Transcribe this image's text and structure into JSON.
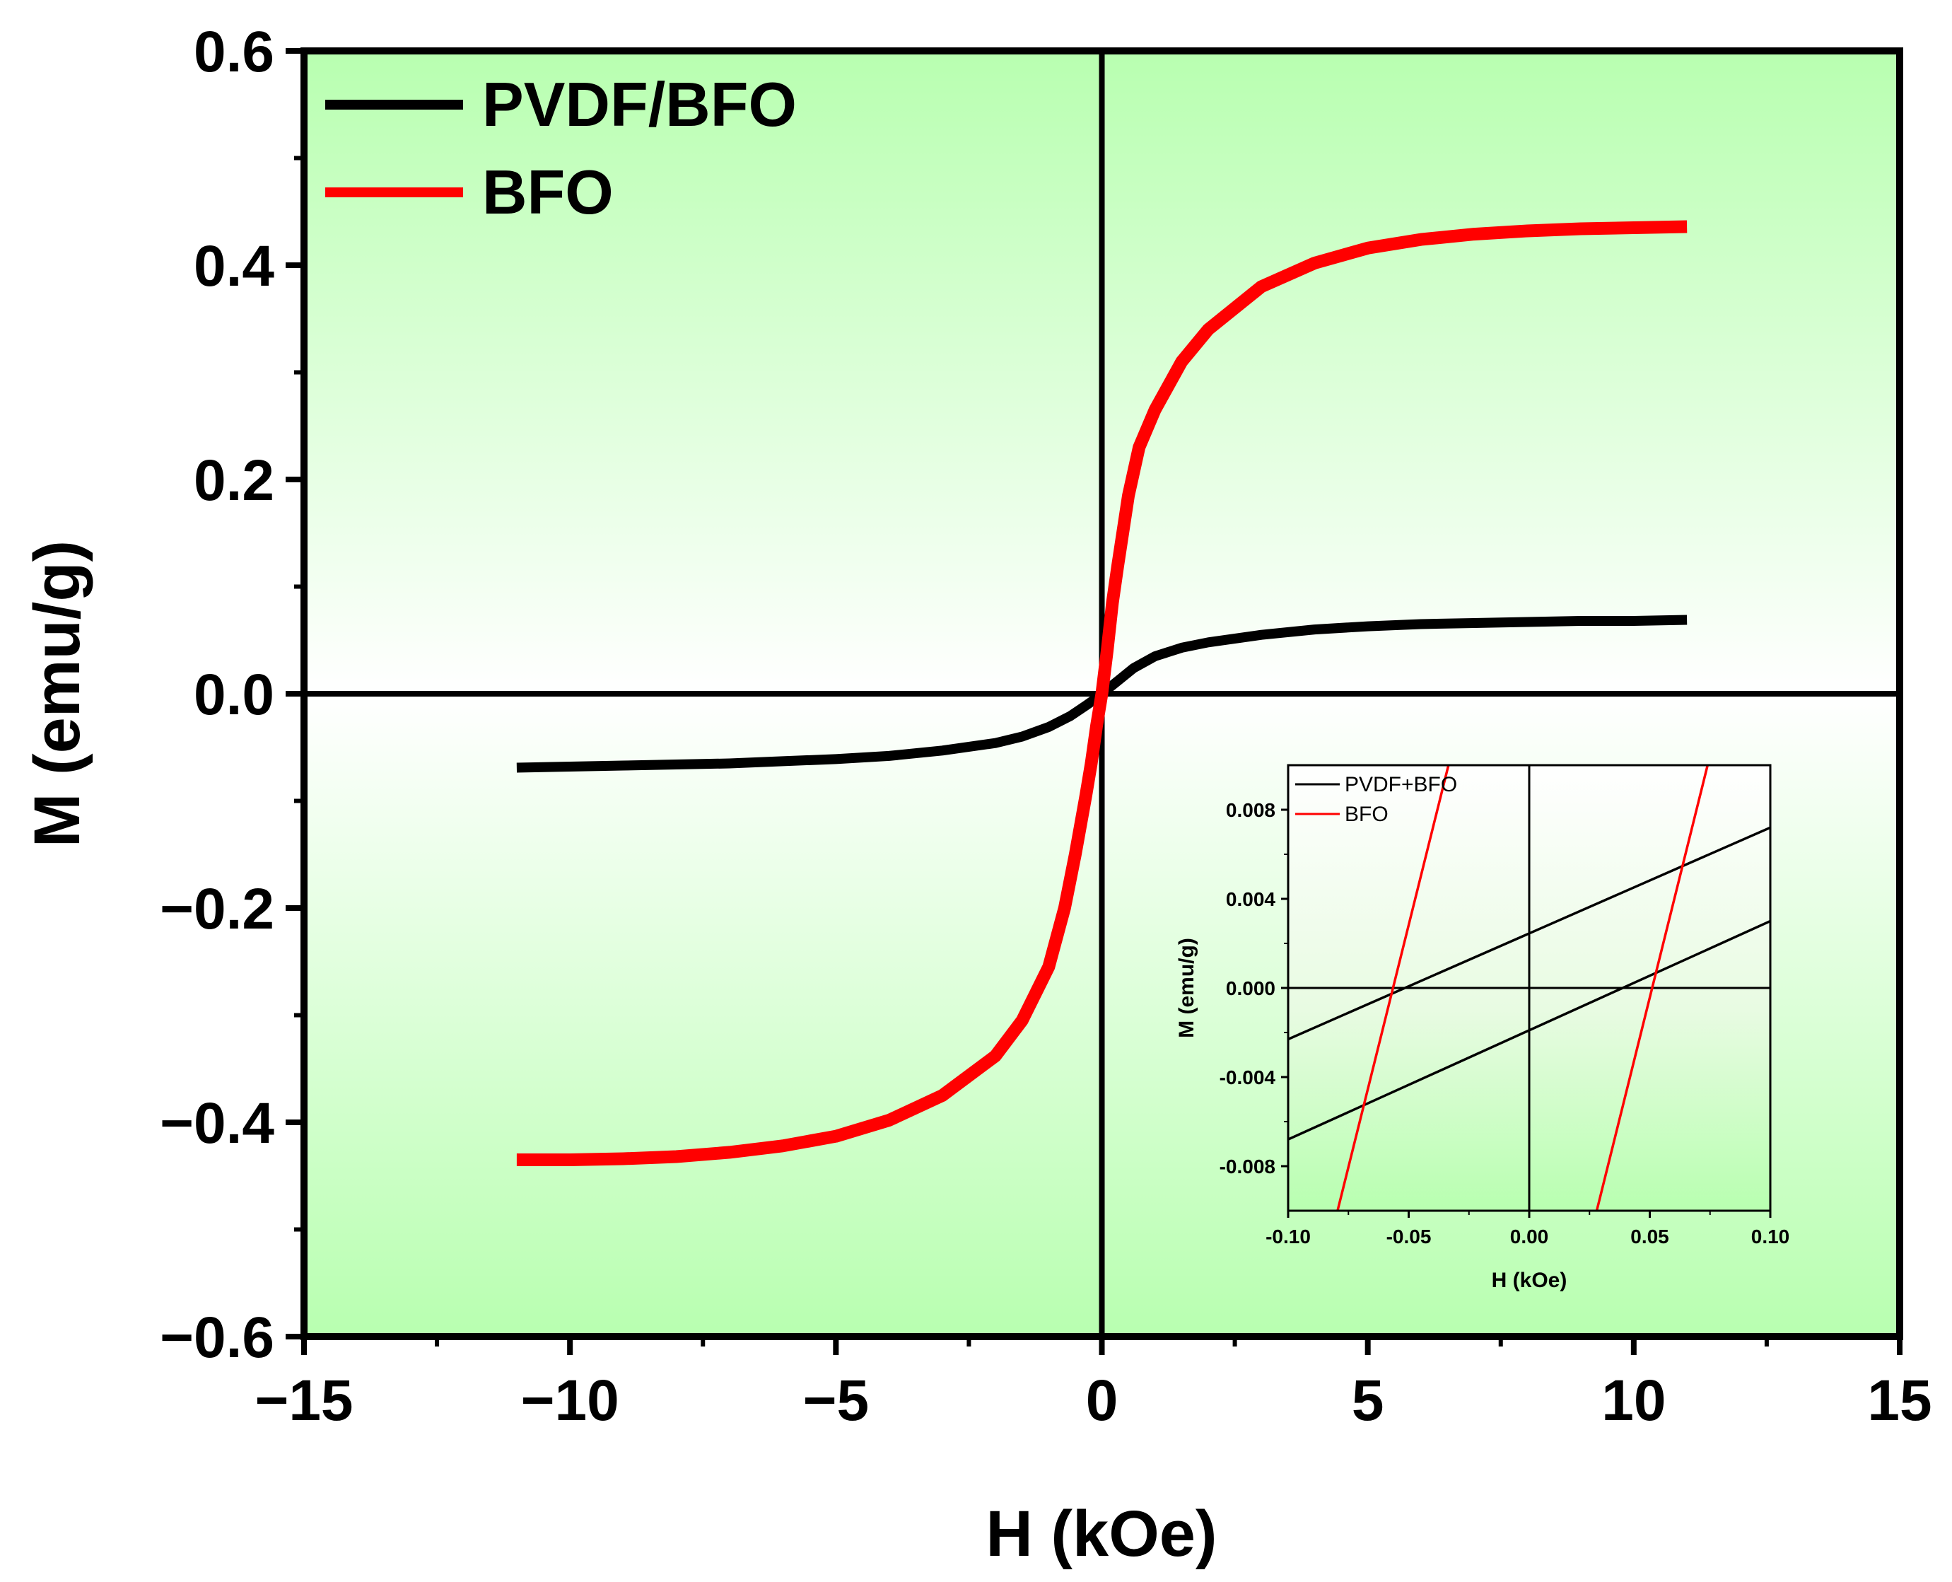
{
  "chart_data": [
    {
      "id": "main",
      "type": "line",
      "xlabel": "H (kOe)",
      "ylabel": "M (emu/g)",
      "xlim": [
        -15,
        15
      ],
      "ylim": [
        -0.6,
        0.6
      ],
      "xticks": [
        {
          "v": -15,
          "label": "−15"
        },
        {
          "v": -10,
          "label": "−10"
        },
        {
          "v": -5,
          "label": "−5"
        },
        {
          "v": 0,
          "label": "0"
        },
        {
          "v": 5,
          "label": "5"
        },
        {
          "v": 10,
          "label": "10"
        },
        {
          "v": 15,
          "label": "15"
        }
      ],
      "yticks": [
        {
          "v": 0.6,
          "label": "0.6"
        },
        {
          "v": 0.4,
          "label": "0.4"
        },
        {
          "v": 0.2,
          "label": "0.2"
        },
        {
          "v": 0.0,
          "label": "0.0"
        },
        {
          "v": -0.2,
          "label": "−0.2"
        },
        {
          "v": -0.4,
          "label": "−0.4"
        },
        {
          "v": -0.6,
          "label": "−0.6"
        }
      ],
      "series": [
        {
          "name": "PVDF/BFO",
          "color": "#000000",
          "x": [
            -11,
            -10,
            -9,
            -8,
            -7,
            -6,
            -5,
            -4,
            -3,
            -2,
            -1.5,
            -1,
            -0.6,
            -0.3,
            -0.1,
            0,
            0.1,
            0.3,
            0.6,
            1,
            1.5,
            2,
            3,
            4,
            5,
            6,
            7,
            8,
            9,
            10,
            11
          ],
          "y": [
            -0.069,
            -0.068,
            -0.067,
            -0.066,
            -0.065,
            -0.063,
            -0.061,
            -0.058,
            -0.053,
            -0.046,
            -0.04,
            -0.031,
            -0.021,
            -0.011,
            -0.004,
            0,
            0.004,
            0.012,
            0.024,
            0.035,
            0.043,
            0.048,
            0.055,
            0.06,
            0.063,
            0.065,
            0.066,
            0.067,
            0.068,
            0.068,
            0.069
          ]
        },
        {
          "name": "BFO",
          "color": "#ff0000",
          "x": [
            -11,
            -10,
            -9,
            -8,
            -7,
            -6,
            -5,
            -4,
            -3,
            -2,
            -1.5,
            -1,
            -0.7,
            -0.5,
            -0.3,
            -0.2,
            -0.1,
            0,
            0.1,
            0.2,
            0.3,
            0.5,
            0.7,
            1,
            1.5,
            2,
            3,
            4,
            5,
            6,
            7,
            8,
            9,
            10,
            11
          ],
          "y": [
            -0.435,
            -0.435,
            -0.434,
            -0.432,
            -0.428,
            -0.422,
            -0.413,
            -0.398,
            -0.375,
            -0.338,
            -0.305,
            -0.255,
            -0.2,
            -0.15,
            -0.095,
            -0.065,
            -0.03,
            0.0,
            0.04,
            0.085,
            0.12,
            0.185,
            0.23,
            0.265,
            0.31,
            0.34,
            0.38,
            0.402,
            0.416,
            0.424,
            0.429,
            0.432,
            0.434,
            0.435,
            0.436
          ]
        }
      ]
    },
    {
      "id": "inset",
      "type": "line",
      "xlabel": "H (kOe)",
      "ylabel": "M (emu/g)",
      "xlim": [
        -0.1,
        0.1
      ],
      "ylim": [
        -0.01,
        0.01
      ],
      "xticks": [
        {
          "v": -0.1,
          "label": "-0.10"
        },
        {
          "v": -0.05,
          "label": "-0.05"
        },
        {
          "v": 0,
          "label": "0.00"
        },
        {
          "v": 0.05,
          "label": "0.05"
        },
        {
          "v": 0.1,
          "label": "0.10"
        }
      ],
      "yticks": [
        {
          "v": 0.008,
          "label": "0.008"
        },
        {
          "v": 0.004,
          "label": "0.004"
        },
        {
          "v": 0.0,
          "label": "0.000"
        },
        {
          "v": -0.004,
          "label": "-0.004"
        },
        {
          "v": -0.008,
          "label": "-0.008"
        }
      ],
      "series": [
        {
          "name": "PVDF+BFO",
          "color": "#000000",
          "segment": "upper",
          "x": [
            -0.1,
            0.1
          ],
          "y": [
            -0.0023,
            0.0072
          ]
        },
        {
          "name": "PVDF+BFO",
          "color": "#000000",
          "segment": "lower",
          "x": [
            -0.1,
            0.1
          ],
          "y": [
            -0.0068,
            0.003
          ]
        },
        {
          "name": "BFO",
          "color": "#ff0000",
          "segment": "left",
          "x": [
            -0.0795,
            -0.0335
          ],
          "y": [
            -0.01,
            0.01
          ]
        },
        {
          "name": "BFO",
          "color": "#ff0000",
          "segment": "right",
          "x": [
            0.028,
            0.074
          ],
          "y": [
            -0.01,
            0.01
          ]
        }
      ],
      "legend": [
        {
          "name": "PVDF+BFO",
          "color": "#000000"
        },
        {
          "name": "BFO",
          "color": "#ff0000"
        }
      ]
    }
  ],
  "legend": [
    {
      "name": "PVDF/BFO",
      "color": "#000000"
    },
    {
      "name": "BFO",
      "color": "#ff0000"
    }
  ],
  "colors": {
    "background_green": "#b8ffb0",
    "background_white": "#ffffff",
    "line_black": "#000000",
    "line_red": "#ff0000"
  }
}
